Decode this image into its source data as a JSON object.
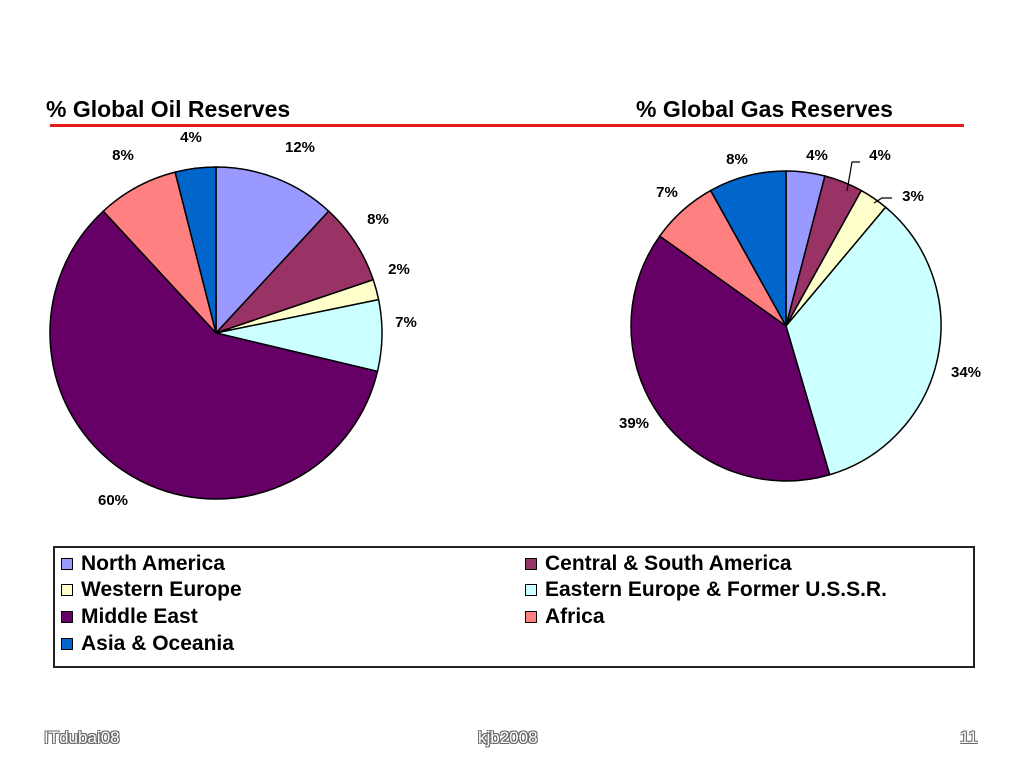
{
  "chart_data": [
    {
      "type": "pie",
      "title": "% Global Oil Reserves",
      "categories": [
        "North America",
        "Central & South America",
        "Western Europe",
        "Eastern Europe & Former U.S.S.R.",
        "Middle East",
        "Africa",
        "Asia & Oceania"
      ],
      "values": [
        12,
        8,
        2,
        7,
        60,
        8,
        4
      ],
      "labels": [
        "12%",
        "8%",
        "2%",
        "7%",
        "60%",
        "8%",
        "4%"
      ]
    },
    {
      "type": "pie",
      "title": "% Global Gas Reserves",
      "categories": [
        "North America",
        "Central & South America",
        "Western Europe",
        "Eastern Europe & Former U.S.S.R.",
        "Middle East",
        "Africa",
        "Asia & Oceania"
      ],
      "values": [
        4,
        4,
        3,
        34,
        39,
        7,
        8
      ],
      "labels": [
        "4%",
        "4%",
        "3%",
        "34%",
        "39%",
        "7%",
        "8%"
      ]
    }
  ],
  "colors": [
    "#9999ff",
    "#993366",
    "#ffffcc",
    "#ccffff",
    "#660066",
    "#ff8080",
    "#0066cc"
  ],
  "accent_rule_color": "#e31b1b",
  "legend": [
    {
      "label": "North America",
      "color": "#9999ff"
    },
    {
      "label": "Central & South America",
      "color": "#993366"
    },
    {
      "label": "Western Europe",
      "color": "#ffffcc"
    },
    {
      "label": "Eastern Europe & Former U.S.S.R.",
      "color": "#ccffff"
    },
    {
      "label": "Middle East",
      "color": "#660066"
    },
    {
      "label": "Africa",
      "color": "#ff8080"
    },
    {
      "label": "Asia & Oceania",
      "color": "#0066cc"
    }
  ],
  "footer": {
    "left": "ITdubai08",
    "center": "kjb2008",
    "right": "11"
  }
}
